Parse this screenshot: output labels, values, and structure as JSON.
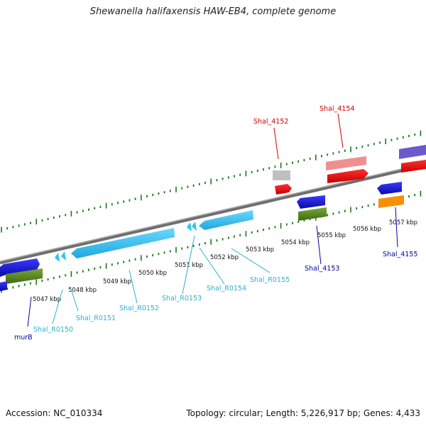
{
  "title": "Shewanella halifaxensis HAW-EB4, complete genome",
  "footer": {
    "accession": "Accession: NC_010334",
    "topology": "Topology: circular; Length: 5,226,917 bp; Genes: 4,433"
  },
  "colors": {
    "backbone": "#8c8c8c",
    "tick": "#1a7a1a",
    "blue_gene": "#1010dd",
    "cyan_gene": "#2ec4f0",
    "red_gene": "#ee1111",
    "pink_gene": "#ee8a8a",
    "olive_gene": "#5a8a1a",
    "grey_gene": "#b8b8b8",
    "orange_gene": "#f5900a",
    "purple_gene": "#6a5acd",
    "label_red": "#cc0000",
    "label_blue": "#0000aa",
    "label_cyan": "#2ab0d8"
  },
  "ruler": {
    "unit": "kbp",
    "ticks": [
      "5047 kbp",
      "5048 kbp",
      "5049 kbp",
      "5050 kbp",
      "5051 kbp",
      "5052 kbp",
      "5053 kbp",
      "5054 kbp",
      "5055 kbp",
      "5056 kbp",
      "5057 kbp"
    ]
  },
  "genes": [
    {
      "name": "murB",
      "color": "label_blue"
    },
    {
      "name": "Shal_R0150",
      "color": "label_cyan"
    },
    {
      "name": "Shal_R0151",
      "color": "label_cyan"
    },
    {
      "name": "Shal_R0152",
      "color": "label_cyan"
    },
    {
      "name": "Shal_R0153",
      "color": "label_cyan"
    },
    {
      "name": "Shal_R0154",
      "color": "label_cyan"
    },
    {
      "name": "Shal_R0155",
      "color": "label_cyan"
    },
    {
      "name": "Shal_4152",
      "color": "label_red"
    },
    {
      "name": "Shal_4153",
      "color": "label_blue"
    },
    {
      "name": "Shal_4154",
      "color": "label_red"
    },
    {
      "name": "Shal_4155",
      "color": "label_blue"
    }
  ]
}
